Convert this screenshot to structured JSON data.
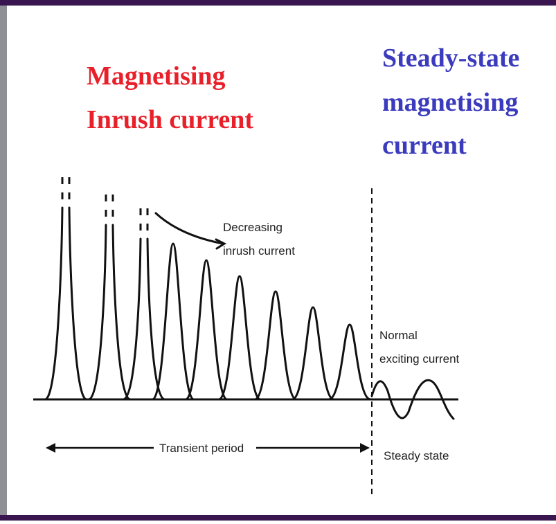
{
  "headings": {
    "left": {
      "lines": [
        "Magnetising",
        "Inrush current"
      ]
    },
    "right": {
      "lines": [
        "Steady-state",
        "magnetising",
        "current"
      ]
    }
  },
  "labels": {
    "decreasing": {
      "lines": [
        "Decreasing",
        "inrush current"
      ]
    },
    "normal": {
      "lines": [
        "Normal",
        "exciting current"
      ]
    },
    "transient": "Transient period",
    "steady": "Steady state"
  }
}
